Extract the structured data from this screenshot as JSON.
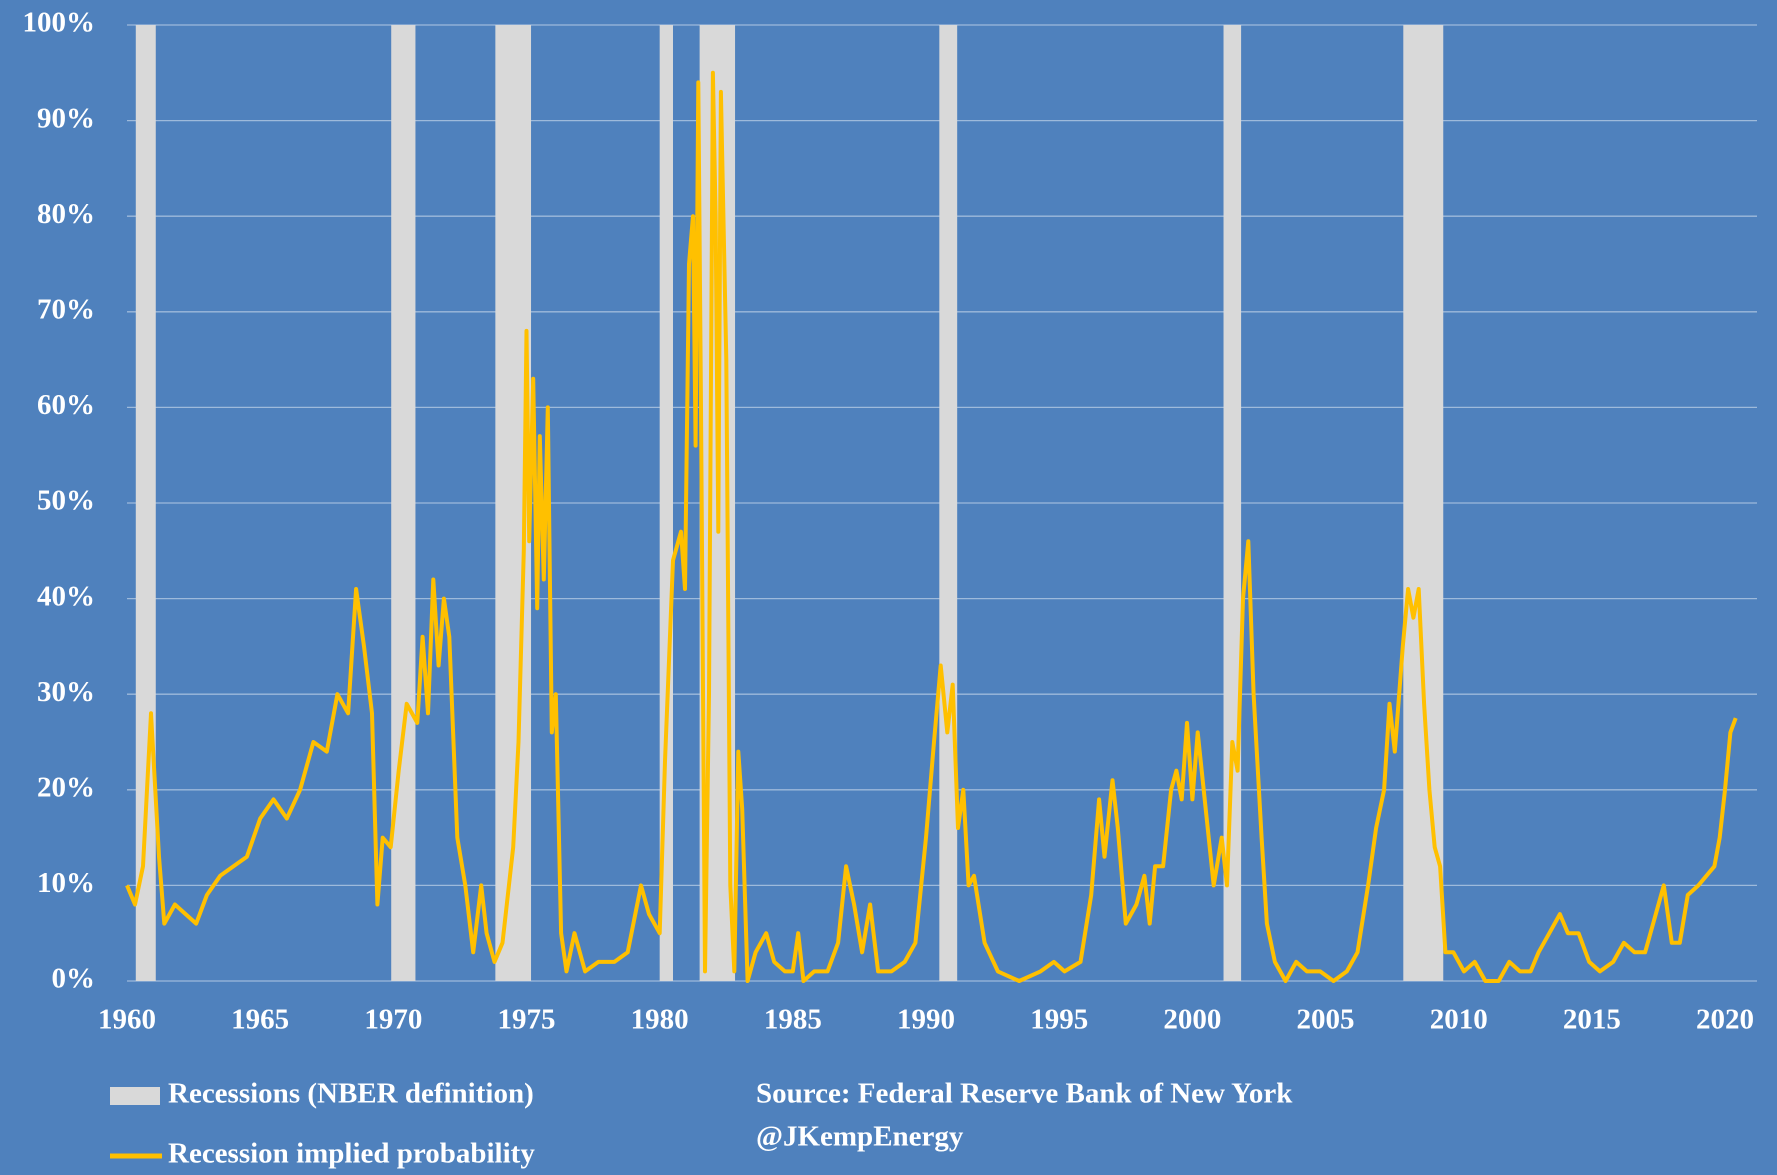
{
  "chart_data": {
    "type": "line",
    "recessions": {
      "name": "Recessions (NBER definition)",
      "color": "#d9d9d9",
      "ranges": [
        [
          1960.33,
          1961.08
        ],
        [
          1969.92,
          1970.83
        ],
        [
          1973.83,
          1975.17
        ],
        [
          1980.0,
          1980.5
        ],
        [
          1981.5,
          1982.83
        ],
        [
          1990.5,
          1991.17
        ],
        [
          2001.17,
          2001.83
        ],
        [
          2007.92,
          2009.42
        ]
      ]
    },
    "x": [
      1960.0,
      1960.3,
      1960.6,
      1960.9,
      1961.2,
      1961.4,
      1961.8,
      1962.2,
      1962.6,
      1963.0,
      1963.5,
      1964.0,
      1964.5,
      1965.0,
      1965.5,
      1966.0,
      1966.5,
      1967.0,
      1967.5,
      1967.9,
      1968.3,
      1968.6,
      1968.9,
      1969.2,
      1969.4,
      1969.6,
      1969.9,
      1970.2,
      1970.5,
      1970.9,
      1971.1,
      1971.3,
      1971.5,
      1971.7,
      1971.9,
      1972.1,
      1972.4,
      1972.7,
      1973.0,
      1973.3,
      1973.5,
      1973.8,
      1974.1,
      1974.5,
      1974.7,
      1974.9,
      1975.0,
      1975.1,
      1975.25,
      1975.4,
      1975.5,
      1975.65,
      1975.8,
      1975.95,
      1976.1,
      1976.3,
      1976.5,
      1976.8,
      1977.2,
      1977.7,
      1978.3,
      1978.8,
      1979.3,
      1979.6,
      1980.0,
      1980.2,
      1980.5,
      1980.8,
      1980.95,
      1981.1,
      1981.25,
      1981.35,
      1981.45,
      1981.55,
      1981.7,
      1981.85,
      1982.0,
      1982.1,
      1982.2,
      1982.3,
      1982.5,
      1982.65,
      1982.8,
      1982.95,
      1983.1,
      1983.3,
      1983.6,
      1984.0,
      1984.3,
      1984.7,
      1985.0,
      1985.2,
      1985.4,
      1985.8,
      1986.3,
      1986.7,
      1987.0,
      1987.3,
      1987.6,
      1987.9,
      1988.2,
      1988.7,
      1989.2,
      1989.6,
      1990.0,
      1990.3,
      1990.55,
      1990.8,
      1991.0,
      1991.2,
      1991.4,
      1991.6,
      1991.8,
      1992.2,
      1992.7,
      1993.5,
      1994.3,
      1994.8,
      1995.2,
      1995.8,
      1996.2,
      1996.5,
      1996.7,
      1997.0,
      1997.2,
      1997.5,
      1997.9,
      1998.2,
      1998.4,
      1998.6,
      1998.9,
      1999.2,
      1999.4,
      1999.6,
      1999.8,
      2000.0,
      2000.2,
      2000.5,
      2000.8,
      2001.1,
      2001.3,
      2001.5,
      2001.7,
      2001.9,
      2002.1,
      2002.3,
      2002.6,
      2002.8,
      2003.1,
      2003.5,
      2003.9,
      2004.3,
      2004.8,
      2005.3,
      2005.8,
      2006.2,
      2006.6,
      2006.9,
      2007.2,
      2007.4,
      2007.6,
      2007.9,
      2008.1,
      2008.3,
      2008.5,
      2008.7,
      2008.9,
      2009.1,
      2009.3,
      2009.5,
      2009.8,
      2010.2,
      2010.6,
      2011.0,
      2011.5,
      2011.9,
      2012.3,
      2012.7,
      2013.0,
      2013.4,
      2013.8,
      2014.1,
      2014.5,
      2014.9,
      2015.3,
      2015.8,
      2016.2,
      2016.6,
      2017.0,
      2017.4,
      2017.7,
      2018.0,
      2018.3,
      2018.6,
      2019.0,
      2019.3,
      2019.6,
      2019.8,
      2020.0,
      2020.2,
      2020.4
    ],
    "series": [
      {
        "name": "Recession implied probability",
        "color": "#ffc000",
        "values": [
          10,
          8,
          12,
          28,
          13,
          6,
          8,
          7,
          6,
          9,
          11,
          12,
          13,
          17,
          19,
          17,
          20,
          25,
          24,
          30,
          28,
          41,
          35,
          28,
          8,
          15,
          14,
          22,
          29,
          27,
          36,
          28,
          42,
          33,
          40,
          36,
          15,
          10,
          3,
          10,
          5,
          2,
          4,
          14,
          25,
          45,
          68,
          46,
          63,
          39,
          57,
          42,
          60,
          26,
          30,
          5,
          1,
          5,
          1,
          2,
          2,
          3,
          10,
          7,
          5,
          23,
          44,
          47,
          41,
          75,
          80,
          56,
          94,
          60,
          1,
          30,
          95,
          80,
          47,
          93,
          65,
          10,
          1,
          24,
          18,
          0,
          3,
          5,
          2,
          1,
          1,
          5,
          0,
          1,
          1,
          4,
          12,
          8,
          3,
          8,
          1,
          1,
          2,
          4,
          15,
          25,
          33,
          26,
          31,
          16,
          20,
          10,
          11,
          4,
          1,
          0,
          1,
          2,
          1,
          2,
          9,
          19,
          13,
          21,
          16,
          6,
          8,
          11,
          6,
          12,
          12,
          20,
          22,
          19,
          27,
          19,
          26,
          18,
          10,
          15,
          10,
          25,
          22,
          40,
          46,
          30,
          15,
          6,
          2,
          0,
          2,
          1,
          1,
          0,
          1,
          3,
          10,
          16,
          20,
          29,
          24,
          35,
          41,
          38,
          41,
          29,
          20,
          14,
          12,
          3,
          3,
          1,
          2,
          0,
          0,
          2,
          1,
          1,
          3,
          5,
          7,
          5,
          5,
          2,
          1,
          2,
          4,
          3,
          3,
          7,
          10,
          4,
          4,
          9,
          10,
          11,
          12,
          15,
          20,
          26,
          27.5
        ]
      }
    ],
    "xlim": [
      1960,
      2021.2
    ],
    "xticks": [
      1960,
      1965,
      1970,
      1975,
      1980,
      1985,
      1990,
      1995,
      2000,
      2005,
      2010,
      2015,
      2020
    ],
    "ylim": [
      0,
      100
    ],
    "yticks": [
      {
        "value": 0,
        "label": "0%"
      },
      {
        "value": 10,
        "label": "10%"
      },
      {
        "value": 20,
        "label": "20%"
      },
      {
        "value": 30,
        "label": "30%"
      },
      {
        "value": 40,
        "label": "40%"
      },
      {
        "value": 50,
        "label": "50%"
      },
      {
        "value": 60,
        "label": "60%"
      },
      {
        "value": 70,
        "label": "70%"
      },
      {
        "value": 80,
        "label": "80%"
      },
      {
        "value": 90,
        "label": "90%"
      },
      {
        "value": 100,
        "label": "100%"
      }
    ],
    "grid": true,
    "source": "Source: Federal Reserve Bank of New York",
    "credit": "@JKempEnergy"
  }
}
